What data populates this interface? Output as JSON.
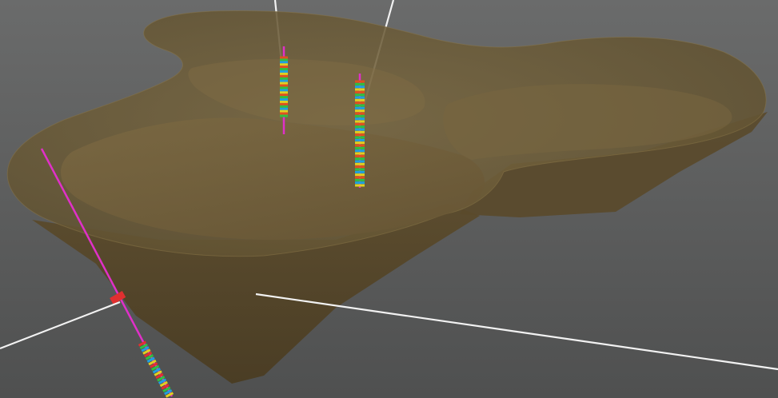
{
  "viewport": {
    "background_top": "#6a6b6b",
    "background_bottom": "#4f5050",
    "view_type": "3d-geological-model",
    "objects": {
      "mesh_surface": {
        "name": "excavation-surface",
        "fill_color": "#6f5e3a",
        "edge_color": "#8a7548",
        "opacity": 0.82
      },
      "boreholes": [
        {
          "name": "borehole-1",
          "trace_color": "#e030c8",
          "marker_colors": [
            "#e05020",
            "#30c040",
            "#20a0e0",
            "#e0d020"
          ]
        },
        {
          "name": "borehole-2",
          "trace_color": "#e030c8",
          "marker_colors": [
            "#e05020",
            "#30c040",
            "#20a0e0",
            "#e0d020"
          ]
        },
        {
          "name": "borehole-3-inclined",
          "trace_color": "#e030c8",
          "marker_colors": [
            "#e03030",
            "#30c040",
            "#20a0e0",
            "#e0d020"
          ]
        }
      ],
      "reference_lines": {
        "color": "#f2f2f2",
        "count": 4
      }
    }
  }
}
